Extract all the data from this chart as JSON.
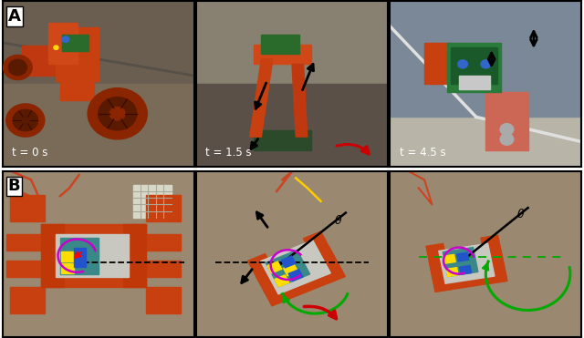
{
  "figure_width": 6.4,
  "figure_height": 3.71,
  "dpi": 100,
  "background_color": "#ffffff",
  "border_color": "#000000",
  "border_linewidth": 1.5,
  "row_A_label": "A",
  "row_B_label": "B",
  "label_fontsize": 13,
  "label_fontweight": "bold",
  "time_labels": [
    "t = 0 s",
    "t = 1.5 s",
    "t = 4.5 s"
  ],
  "time_fontsize": 8.5,
  "hspace": 0.03,
  "wspace": 0.01,
  "panel_bg_A": [
    "#7a6a55",
    "#6a5e50",
    "#8090a0"
  ],
  "panel_bg_B": [
    "#9a8870",
    "#9a8870",
    "#9a8870"
  ],
  "orange": "#d04010",
  "dark_orange": "#a02808",
  "green_robot": "#2a7a3a",
  "arrow_black": "#000000",
  "arrow_red": "#cc0000",
  "arrow_green": "#00aa00",
  "purple": "#aa00aa"
}
